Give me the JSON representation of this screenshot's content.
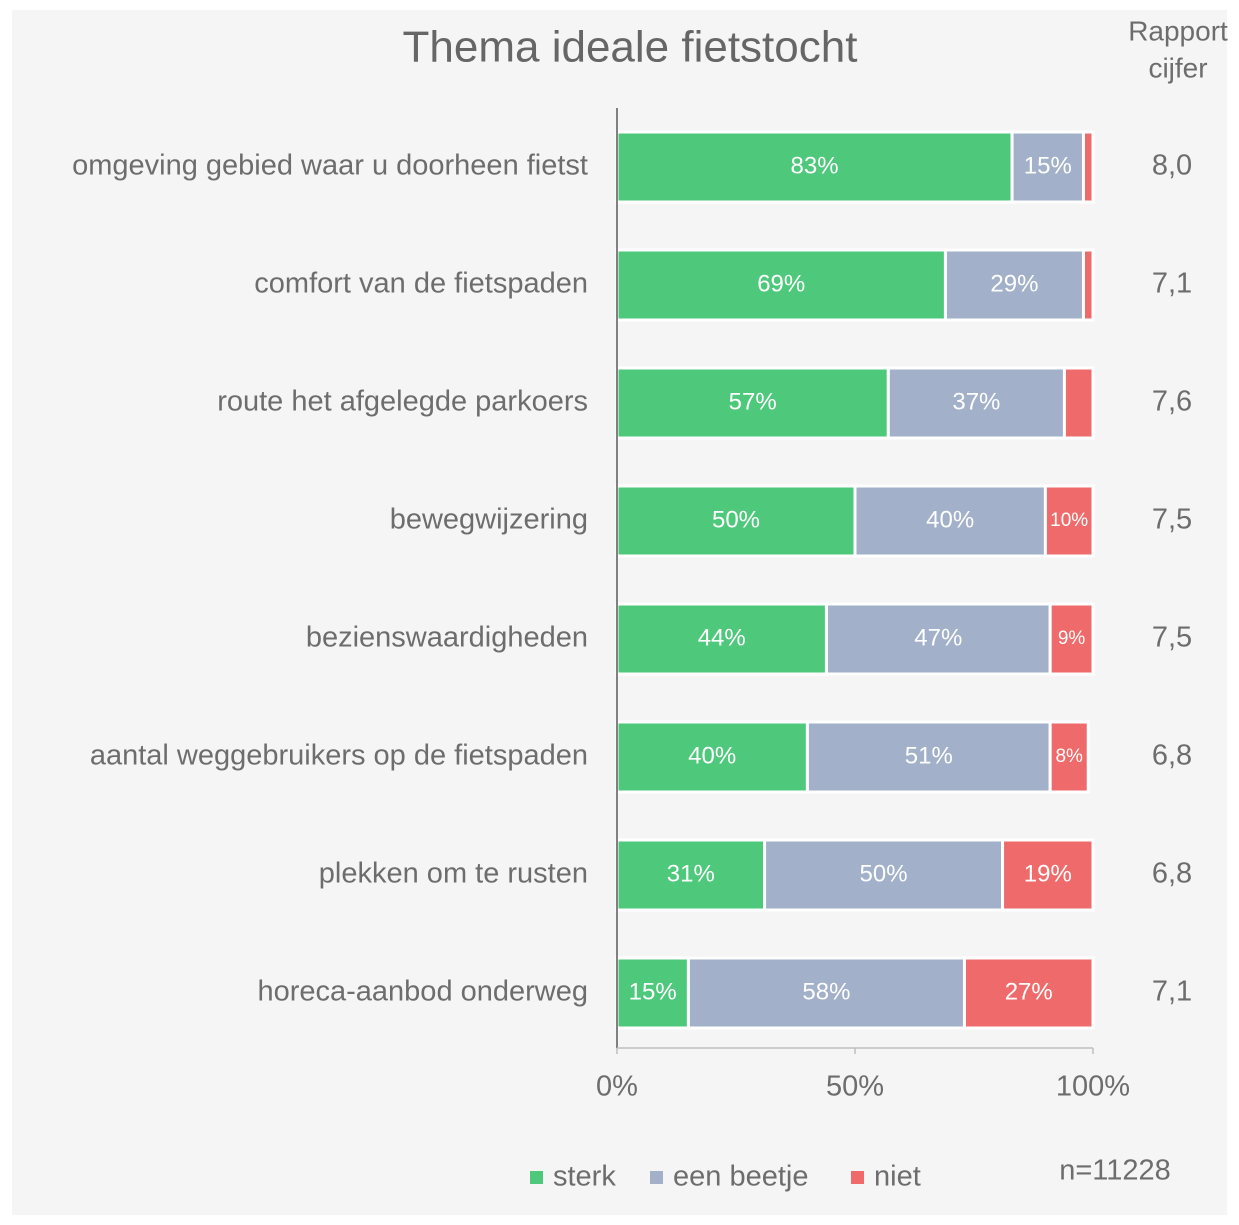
{
  "chart_data": {
    "type": "stacked-barh",
    "title": "Thema ideale fietstocht",
    "categories": [
      "omgeving gebied waar u doorheen fietst",
      "comfort van de fietspaden",
      "route het afgelegde parkoers",
      "bewegwijzering",
      "bezienswaardigheden",
      "aantal weggebruikers op de fietspaden",
      "plekken om te rusten",
      "horeca-aanbod onderweg"
    ],
    "series": [
      {
        "name": "sterk",
        "color": "#4ec97b",
        "values": [
          83,
          69,
          57,
          50,
          44,
          40,
          31,
          15
        ],
        "value_labels": [
          "83%",
          "69%",
          "57%",
          "50%",
          "44%",
          "40%",
          "31%",
          "15%"
        ]
      },
      {
        "name": "een beetje",
        "color": "#a2b0c9",
        "values": [
          15,
          29,
          37,
          40,
          47,
          51,
          50,
          58
        ],
        "value_labels": [
          "15%",
          "29%",
          "37%",
          "40%",
          "47%",
          "51%",
          "50%",
          "58%"
        ]
      },
      {
        "name": "niet",
        "color": "#ef6b6b",
        "values": [
          2,
          2,
          6,
          10,
          9,
          8,
          19,
          27
        ],
        "value_labels": [
          null,
          null,
          null,
          "10%",
          "9%",
          "8%",
          "19%",
          "27%"
        ]
      }
    ],
    "xlim": [
      0,
      100
    ],
    "xticks": [
      {
        "value": 0,
        "label": "0%"
      },
      {
        "value": 50,
        "label": "50%"
      },
      {
        "value": 100,
        "label": "100%"
      }
    ],
    "side_column": {
      "title_lines": [
        "Rapport",
        "cijfer"
      ],
      "values": [
        "8,0",
        "7,1",
        "7,6",
        "7,5",
        "7,5",
        "6,8",
        "6,8",
        "7,1"
      ]
    },
    "note": "n=11228",
    "legend": "bottom"
  }
}
